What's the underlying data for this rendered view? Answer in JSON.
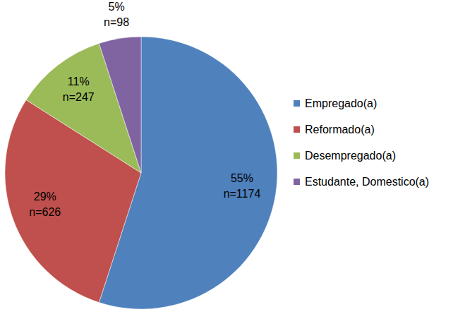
{
  "chart_data": {
    "type": "pie",
    "categories": [
      "Empregado(a)",
      "Reformado(a)",
      "Desempregado(a)",
      "Estudante, Domestico(a)"
    ],
    "values": [
      55,
      29,
      11,
      5
    ],
    "value_labels": [
      "55%",
      "29%",
      "11%",
      "5%"
    ],
    "count_labels": [
      "n=1174",
      "n=626",
      "n=247",
      "n=98"
    ],
    "colors": [
      "#4f81bd",
      "#c0504d",
      "#9bbb59",
      "#8064a2"
    ],
    "data_labels": true,
    "legend": "right"
  }
}
